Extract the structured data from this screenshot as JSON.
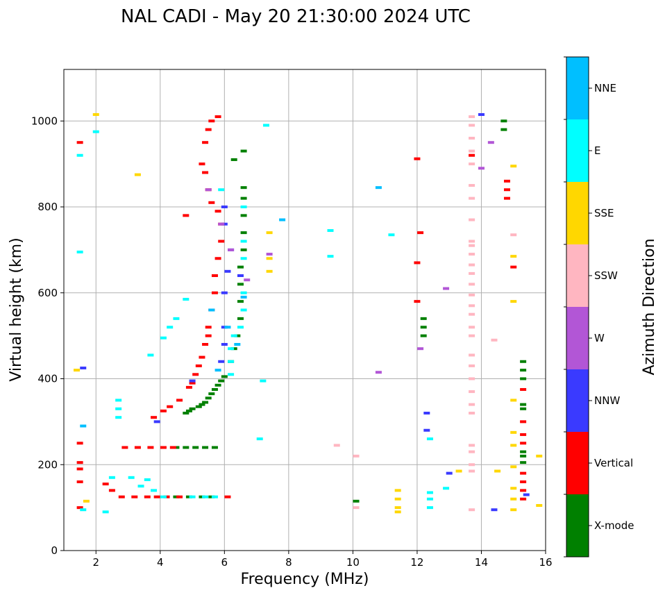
{
  "chart_data": {
    "type": "scatter",
    "title": "NAL CADI - May 20 21:30:00 2024 UTC",
    "xlabel": "Frequency (MHz)",
    "ylabel": "Virtual height (km)",
    "xlim": [
      1,
      16
    ],
    "ylim": [
      0,
      1120
    ],
    "xticks": [
      2,
      4,
      6,
      8,
      10,
      12,
      14,
      16
    ],
    "yticks": [
      0,
      200,
      400,
      600,
      800,
      1000
    ],
    "grid": true,
    "colorbar": {
      "label": "Azimuth Direction",
      "categories": [
        {
          "name": "X-mode",
          "color": "#008000"
        },
        {
          "name": "Vertical",
          "color": "#ff0000"
        },
        {
          "name": "NNW",
          "color": "#3a3aff"
        },
        {
          "name": "W",
          "color": "#b256d6"
        },
        {
          "name": "SSW",
          "color": "#ffb6c1"
        },
        {
          "name": "SSE",
          "color": "#ffd700"
        },
        {
          "name": "E",
          "color": "#00ffff"
        },
        {
          "name": "NNE",
          "color": "#00bfff"
        }
      ]
    },
    "series": [
      {
        "name": "X-mode",
        "points": [
          [
            5.9,
            395
          ],
          [
            6.0,
            405
          ],
          [
            5.8,
            385
          ],
          [
            5.7,
            375
          ],
          [
            5.6,
            365
          ],
          [
            5.5,
            355
          ],
          [
            5.4,
            345
          ],
          [
            5.3,
            340
          ],
          [
            5.2,
            335
          ],
          [
            5.0,
            330
          ],
          [
            4.9,
            325
          ],
          [
            4.8,
            320
          ],
          [
            6.2,
            440
          ],
          [
            6.3,
            470
          ],
          [
            6.4,
            500
          ],
          [
            6.5,
            540
          ],
          [
            6.5,
            580
          ],
          [
            6.5,
            620
          ],
          [
            6.5,
            660
          ],
          [
            6.6,
            700
          ],
          [
            6.6,
            740
          ],
          [
            6.6,
            780
          ],
          [
            6.6,
            820
          ],
          [
            6.6,
            845
          ],
          [
            6.3,
            910
          ],
          [
            6.6,
            930
          ],
          [
            4.5,
            240
          ],
          [
            4.8,
            240
          ],
          [
            5.1,
            240
          ],
          [
            5.4,
            240
          ],
          [
            5.7,
            240
          ],
          [
            4.5,
            125
          ],
          [
            4.9,
            125
          ],
          [
            5.3,
            125
          ],
          [
            5.6,
            125
          ],
          [
            10.1,
            115
          ],
          [
            12.2,
            500
          ],
          [
            12.2,
            520
          ],
          [
            12.2,
            540
          ],
          [
            14.7,
            980
          ],
          [
            14.7,
            1000
          ],
          [
            15.3,
            400
          ],
          [
            15.3,
            420
          ],
          [
            15.3,
            440
          ],
          [
            15.3,
            330
          ],
          [
            15.3,
            340
          ],
          [
            15.3,
            230
          ],
          [
            15.3,
            220
          ],
          [
            15.3,
            205
          ]
        ]
      },
      {
        "name": "Vertical",
        "points": [
          [
            1.5,
            950
          ],
          [
            1.5,
            250
          ],
          [
            1.5,
            205
          ],
          [
            1.5,
            190
          ],
          [
            1.5,
            160
          ],
          [
            1.5,
            100
          ],
          [
            2.3,
            155
          ],
          [
            2.5,
            140
          ],
          [
            2.8,
            125
          ],
          [
            3.2,
            125
          ],
          [
            3.6,
            125
          ],
          [
            3.9,
            125
          ],
          [
            4.2,
            125
          ],
          [
            4.6,
            125
          ],
          [
            6.1,
            125
          ],
          [
            2.9,
            240
          ],
          [
            3.3,
            240
          ],
          [
            3.7,
            240
          ],
          [
            4.1,
            240
          ],
          [
            4.4,
            240
          ],
          [
            3.8,
            310
          ],
          [
            4.1,
            325
          ],
          [
            4.3,
            335
          ],
          [
            4.6,
            350
          ],
          [
            4.9,
            380
          ],
          [
            5.0,
            390
          ],
          [
            5.1,
            410
          ],
          [
            5.2,
            430
          ],
          [
            5.3,
            450
          ],
          [
            5.4,
            480
          ],
          [
            5.5,
            500
          ],
          [
            5.5,
            520
          ],
          [
            5.6,
            560
          ],
          [
            5.7,
            600
          ],
          [
            5.7,
            640
          ],
          [
            5.8,
            680
          ],
          [
            5.9,
            720
          ],
          [
            5.9,
            760
          ],
          [
            5.8,
            790
          ],
          [
            5.6,
            810
          ],
          [
            5.5,
            840
          ],
          [
            5.4,
            880
          ],
          [
            5.3,
            900
          ],
          [
            5.4,
            950
          ],
          [
            5.5,
            980
          ],
          [
            5.6,
            1000
          ],
          [
            5.8,
            1010
          ],
          [
            4.8,
            780
          ],
          [
            12.0,
            912
          ],
          [
            12.1,
            740
          ],
          [
            12.0,
            670
          ],
          [
            12.0,
            580
          ],
          [
            13.7,
            920
          ],
          [
            14.8,
            860
          ],
          [
            14.8,
            840
          ],
          [
            14.8,
            820
          ],
          [
            15.0,
            660
          ],
          [
            15.3,
            375
          ],
          [
            15.3,
            300
          ],
          [
            15.3,
            270
          ],
          [
            15.3,
            250
          ],
          [
            15.3,
            180
          ],
          [
            15.3,
            160
          ],
          [
            15.3,
            140
          ],
          [
            15.3,
            120
          ]
        ]
      },
      {
        "name": "NNW",
        "points": [
          [
            1.6,
            425
          ],
          [
            5.9,
            440
          ],
          [
            6.0,
            480
          ],
          [
            6.0,
            520
          ],
          [
            6.0,
            600
          ],
          [
            6.1,
            650
          ],
          [
            6.2,
            700
          ],
          [
            6.0,
            760
          ],
          [
            6.0,
            800
          ],
          [
            6.5,
            640
          ],
          [
            5.0,
            395
          ],
          [
            3.9,
            300
          ],
          [
            12.3,
            320
          ],
          [
            12.3,
            280
          ],
          [
            13.0,
            180
          ],
          [
            14.4,
            95
          ],
          [
            14.0,
            1015
          ],
          [
            15.4,
            130
          ]
        ]
      },
      {
        "name": "W",
        "points": [
          [
            5.5,
            840
          ],
          [
            5.9,
            760
          ],
          [
            6.2,
            700
          ],
          [
            6.7,
            630
          ],
          [
            7.4,
            690
          ],
          [
            12.1,
            470
          ],
          [
            12.9,
            610
          ],
          [
            14.0,
            890
          ],
          [
            14.3,
            950
          ],
          [
            10.8,
            415
          ]
        ]
      },
      {
        "name": "SSW",
        "points": [
          [
            13.7,
            1010
          ],
          [
            13.7,
            990
          ],
          [
            13.7,
            960
          ],
          [
            13.7,
            930
          ],
          [
            13.7,
            900
          ],
          [
            13.7,
            850
          ],
          [
            13.7,
            820
          ],
          [
            13.7,
            770
          ],
          [
            13.7,
            720
          ],
          [
            13.7,
            710
          ],
          [
            13.7,
            690
          ],
          [
            13.7,
            665
          ],
          [
            13.7,
            645
          ],
          [
            13.7,
            620
          ],
          [
            13.7,
            595
          ],
          [
            13.7,
            570
          ],
          [
            13.7,
            550
          ],
          [
            13.7,
            520
          ],
          [
            13.7,
            500
          ],
          [
            13.7,
            455
          ],
          [
            13.7,
            430
          ],
          [
            13.7,
            400
          ],
          [
            13.7,
            370
          ],
          [
            13.7,
            340
          ],
          [
            13.7,
            320
          ],
          [
            13.7,
            245
          ],
          [
            13.7,
            230
          ],
          [
            13.7,
            200
          ],
          [
            13.7,
            185
          ],
          [
            13.7,
            95
          ],
          [
            14.4,
            490
          ],
          [
            15.0,
            735
          ],
          [
            9.5,
            245
          ],
          [
            10.1,
            220
          ],
          [
            10.1,
            100
          ]
        ]
      },
      {
        "name": "SSE",
        "points": [
          [
            2.0,
            1015
          ],
          [
            3.3,
            875
          ],
          [
            7.4,
            740
          ],
          [
            7.4,
            680
          ],
          [
            7.4,
            650
          ],
          [
            15.0,
            895
          ],
          [
            15.0,
            685
          ],
          [
            15.0,
            580
          ],
          [
            15.0,
            350
          ],
          [
            15.0,
            275
          ],
          [
            15.0,
            245
          ],
          [
            15.0,
            195
          ],
          [
            15.0,
            145
          ],
          [
            15.0,
            120
          ],
          [
            15.0,
            95
          ],
          [
            14.5,
            185
          ],
          [
            13.3,
            185
          ],
          [
            11.4,
            140
          ],
          [
            11.4,
            120
          ],
          [
            11.4,
            100
          ],
          [
            11.4,
            90
          ],
          [
            15.8,
            220
          ],
          [
            15.8,
            105
          ],
          [
            1.4,
            420
          ],
          [
            1.7,
            115
          ]
        ]
      },
      {
        "name": "E",
        "points": [
          [
            1.5,
            920
          ],
          [
            1.5,
            695
          ],
          [
            2.0,
            975
          ],
          [
            7.3,
            990
          ],
          [
            2.7,
            350
          ],
          [
            2.7,
            330
          ],
          [
            2.7,
            310
          ],
          [
            2.5,
            170
          ],
          [
            3.1,
            170
          ],
          [
            3.6,
            165
          ],
          [
            3.4,
            150
          ],
          [
            3.8,
            140
          ],
          [
            4.1,
            125
          ],
          [
            5.0,
            125
          ],
          [
            5.4,
            125
          ],
          [
            5.7,
            125
          ],
          [
            3.7,
            455
          ],
          [
            4.1,
            495
          ],
          [
            4.3,
            520
          ],
          [
            4.5,
            540
          ],
          [
            4.8,
            585
          ],
          [
            6.2,
            410
          ],
          [
            6.2,
            440
          ],
          [
            6.2,
            470
          ],
          [
            6.3,
            500
          ],
          [
            6.5,
            520
          ],
          [
            6.6,
            560
          ],
          [
            6.6,
            600
          ],
          [
            6.6,
            680
          ],
          [
            6.6,
            720
          ],
          [
            6.6,
            800
          ],
          [
            5.9,
            840
          ],
          [
            7.2,
            395
          ],
          [
            7.1,
            260
          ],
          [
            9.3,
            685
          ],
          [
            9.3,
            745
          ],
          [
            11.2,
            735
          ],
          [
            12.4,
            260
          ],
          [
            12.4,
            135
          ],
          [
            12.4,
            120
          ],
          [
            12.4,
            100
          ],
          [
            12.9,
            145
          ],
          [
            1.6,
            95
          ],
          [
            2.3,
            90
          ]
        ]
      },
      {
        "name": "NNE",
        "points": [
          [
            1.6,
            290
          ],
          [
            5.6,
            560
          ],
          [
            6.1,
            520
          ],
          [
            6.4,
            480
          ],
          [
            6.6,
            590
          ],
          [
            10.8,
            845
          ],
          [
            7.8,
            770
          ],
          [
            5.8,
            420
          ]
        ]
      }
    ]
  }
}
